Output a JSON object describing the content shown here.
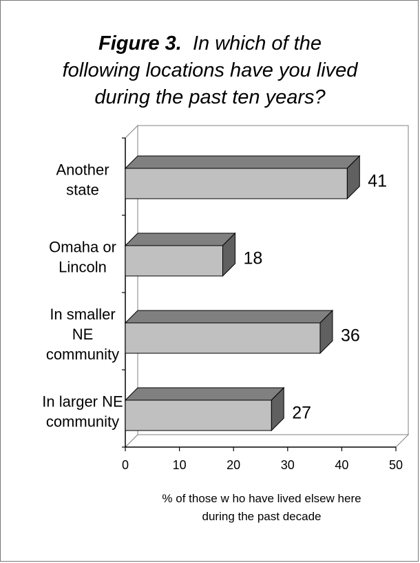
{
  "title": {
    "figure_label": "Figure 3.",
    "line1_rest": "In which of the",
    "line2": "following locations have you lived",
    "line3": "during the past ten years?"
  },
  "chart_data": {
    "type": "bar",
    "orientation": "horizontal",
    "style": "3d",
    "categories": [
      [
        "Another",
        "state"
      ],
      [
        "Omaha or",
        "Lincoln"
      ],
      [
        "In smaller",
        "NE",
        "community"
      ],
      [
        "In larger NE",
        "community"
      ]
    ],
    "values": [
      41,
      18,
      36,
      27
    ],
    "data_labels": [
      "41",
      "18",
      "36",
      "27"
    ],
    "xlim": [
      0,
      50
    ],
    "xticks": [
      "0",
      "10",
      "20",
      "30",
      "40",
      "50"
    ],
    "xlabel": [
      "% of those w ho have lived elsew here",
      "during the past decade"
    ],
    "bar_color": "#c0c0c0",
    "bar_side_color": "#606060",
    "bar_top_color": "#808080",
    "grid": false,
    "legend": "none"
  }
}
